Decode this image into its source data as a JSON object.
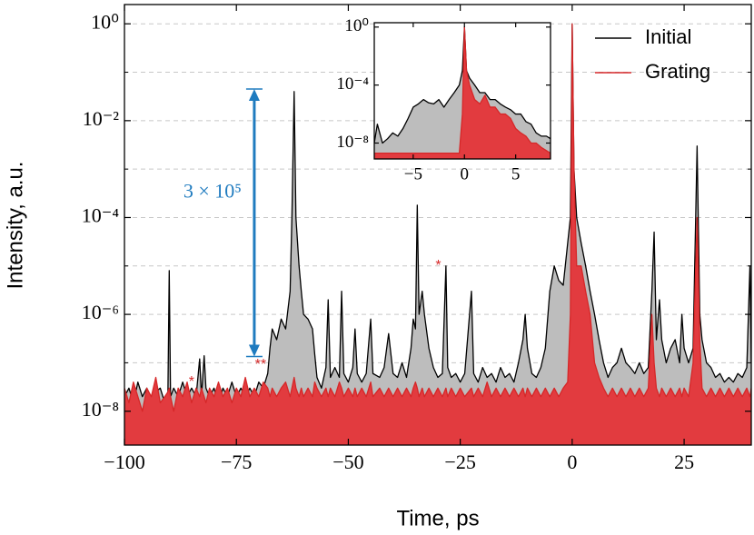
{
  "chart_data": [
    {
      "type": "area",
      "xlabel": "Time, ps",
      "ylabel": "Intensity, a.u.",
      "log_y": true,
      "grid": true,
      "legend": "upper right",
      "xlim": [
        -100,
        40
      ],
      "ylim": [
        2e-09,
        2.5
      ],
      "xticks": [
        {
          "value": -100,
          "label": "−100"
        },
        {
          "value": -75,
          "label": "−75"
        },
        {
          "value": -50,
          "label": "−50"
        },
        {
          "value": -25,
          "label": "−25"
        },
        0,
        25
      ],
      "yticks": [
        {
          "value": 1,
          "label": "10⁰"
        },
        {
          "value": 0.01,
          "label": "10⁻²"
        },
        {
          "value": 0.0001,
          "label": "10⁻⁴"
        },
        {
          "value": 1e-06,
          "label": "10⁻⁶"
        },
        {
          "value": 1e-08,
          "label": "10⁻⁸"
        }
      ],
      "minor_yticks": [
        0.1,
        0.001,
        1e-05,
        1e-07
      ],
      "x": [
        -100,
        -99,
        -98,
        -97,
        -96,
        -95,
        -94,
        -93,
        -92,
        -91,
        -90.3,
        -90,
        -89.7,
        -89,
        -88,
        -87,
        -86,
        -85,
        -84,
        -83.2,
        -82.8,
        -82.2,
        -81.8,
        -81,
        -80,
        -79,
        -78,
        -77,
        -76,
        -75,
        -74,
        -73,
        -72,
        -71,
        -70,
        -69,
        -68,
        -67.5,
        -67,
        -66,
        -65,
        -64,
        -63,
        -62.6,
        -62.1,
        -61.7,
        -61,
        -60.5,
        -60,
        -59,
        -58,
        -57.5,
        -57,
        -56,
        -55,
        -54.5,
        -54,
        -53,
        -52,
        -51.5,
        -51,
        -50,
        -49,
        -48.5,
        -48,
        -47,
        -46,
        -45,
        -44.5,
        -43,
        -42,
        -41,
        -40,
        -39,
        -38,
        -37,
        -36,
        -35.5,
        -35,
        -34.6,
        -34.2,
        -33.5,
        -33,
        -32,
        -31,
        -30,
        -29,
        -28.2,
        -27.8,
        -27,
        -26,
        -25,
        -24,
        -22.5,
        -22,
        -21,
        -20,
        -19,
        -18,
        -17,
        -16,
        -15,
        -14,
        -13,
        -12,
        -11,
        -10.5,
        -10,
        -9,
        -8,
        -7,
        -6,
        -5,
        -4,
        -3,
        -2,
        -1,
        -0.4,
        0,
        0.4,
        1,
        2,
        3,
        4,
        5,
        6,
        7,
        8,
        9,
        10,
        11,
        12,
        13,
        14,
        15,
        16,
        17,
        17.8,
        18.3,
        18.8,
        19.5,
        20,
        21,
        22,
        23,
        24,
        24.5,
        25,
        26,
        27,
        27.9,
        28.5,
        29,
        30,
        31,
        32,
        33,
        34,
        35,
        36,
        37,
        38,
        39,
        39.7,
        40
      ],
      "series": [
        {
          "name": "Initial",
          "color": "#000000",
          "fill": "#bdbdbd",
          "values": [
            2e-08,
            3e-08,
            1.5e-08,
            4e-08,
            2e-08,
            3e-08,
            1.2e-08,
            2.5e-08,
            3e-08,
            1.5e-08,
            2e-08,
            8e-06,
            2e-08,
            3e-08,
            2e-08,
            4e-08,
            2e-08,
            3e-08,
            2e-08,
            1.2e-07,
            2e-08,
            1.4e-07,
            3e-08,
            2e-08,
            3e-08,
            1.5e-08,
            3e-08,
            2e-08,
            4e-08,
            2e-08,
            3e-08,
            2e-08,
            3e-08,
            2e-08,
            4e-08,
            3e-08,
            6e-08,
            2e-07,
            5e-07,
            3e-07,
            8e-07,
            5e-07,
            3e-06,
            0.0001,
            0.04,
            0.0001,
            1e-05,
            3e-06,
            1e-06,
            8e-07,
            5e-07,
            1.5e-07,
            5e-08,
            3e-08,
            8e-08,
            2e-06,
            5e-08,
            8e-08,
            5e-08,
            3e-06,
            6e-08,
            4e-08,
            8e-08,
            5e-07,
            6e-08,
            4e-08,
            6e-08,
            8e-07,
            6e-08,
            5e-08,
            8e-08,
            4e-07,
            6e-08,
            5e-08,
            1e-07,
            5e-08,
            2e-07,
            8e-07,
            5e-07,
            0.00018,
            1e-06,
            3e-06,
            1e-06,
            2e-07,
            8e-08,
            5e-08,
            6e-08,
            1e-05,
            8e-08,
            5e-08,
            6e-08,
            4e-08,
            6e-08,
            3e-06,
            6e-08,
            4e-08,
            8e-08,
            5e-08,
            6e-08,
            4e-08,
            8e-08,
            5e-08,
            6e-08,
            4e-08,
            1e-07,
            3e-07,
            1e-06,
            2e-07,
            6e-08,
            5e-08,
            8e-08,
            2e-07,
            3e-06,
            1e-05,
            5e-06,
            4e-06,
            3e-05,
            0.0001,
            1,
            0.001,
            0.0001,
            3e-05,
            1e-05,
            3e-06,
            1e-06,
            3e-07,
            1e-07,
            5e-08,
            8e-08,
            1e-07,
            2e-07,
            1e-07,
            8e-08,
            6e-08,
            1e-07,
            6e-08,
            8e-08,
            3e-06,
            5e-05,
            3e-07,
            2e-06,
            3e-07,
            1e-07,
            2e-07,
            3e-07,
            1e-07,
            1e-06,
            2e-07,
            1e-07,
            2e-07,
            0.003,
            1e-06,
            3e-07,
            1e-07,
            8e-08,
            5e-08,
            6e-08,
            4e-08,
            5e-08,
            4e-08,
            6e-08,
            5e-08,
            8e-08,
            1e-05,
            1e-07
          ]
        },
        {
          "name": "Grating",
          "color": "#d62728",
          "fill": "#e23b3f",
          "values": [
            3e-08,
            1.5e-08,
            4e-08,
            2e-08,
            1e-08,
            3e-08,
            2e-08,
            5e-08,
            1.5e-08,
            2e-08,
            2.5e-08,
            3e-08,
            2e-08,
            1e-08,
            3e-08,
            2e-08,
            4e-08,
            1.5e-08,
            3e-08,
            2e-08,
            3e-08,
            2e-08,
            1.5e-08,
            3e-08,
            2e-08,
            4e-08,
            2e-08,
            3e-08,
            1.5e-08,
            3e-08,
            2e-08,
            5e-08,
            2e-08,
            3e-08,
            2e-08,
            4e-08,
            3e-08,
            2e-08,
            3e-08,
            2e-08,
            3e-08,
            4e-08,
            2e-08,
            3e-08,
            5e-08,
            3e-08,
            2e-08,
            3e-08,
            2e-08,
            3e-08,
            2e-08,
            4e-08,
            3e-08,
            2e-08,
            3e-08,
            2e-08,
            3e-08,
            2e-08,
            4e-08,
            3e-08,
            2e-08,
            3e-08,
            2e-08,
            3e-08,
            2e-08,
            3e-08,
            2e-08,
            4e-08,
            2e-08,
            3e-08,
            2e-08,
            3e-08,
            2e-08,
            3e-08,
            2e-08,
            3e-08,
            2e-08,
            3e-08,
            4e-08,
            3e-08,
            2e-08,
            3e-08,
            2e-08,
            3e-08,
            2e-08,
            3e-08,
            2e-08,
            3e-08,
            2e-08,
            3e-08,
            2e-08,
            3e-08,
            2e-08,
            3e-08,
            2e-08,
            3e-08,
            2e-08,
            4e-08,
            2e-08,
            3e-08,
            2e-08,
            3e-08,
            2e-08,
            3e-08,
            2e-08,
            3e-08,
            2e-08,
            3e-08,
            2e-08,
            3e-08,
            2e-08,
            3e-08,
            2e-08,
            3e-08,
            2e-08,
            3e-08,
            4e-08,
            1e-06,
            1,
            0.001,
            1e-05,
            1e-05,
            3e-06,
            1e-06,
            1e-07,
            5e-08,
            3e-08,
            2e-08,
            3e-08,
            2e-08,
            3e-08,
            2e-08,
            3e-08,
            2e-08,
            3e-08,
            2e-08,
            3e-08,
            1e-06,
            1e-07,
            3e-08,
            2e-08,
            3e-08,
            2e-08,
            3e-08,
            2e-08,
            3e-08,
            2e-08,
            3e-08,
            2e-08,
            1e-07,
            0.0001,
            3e-07,
            3e-08,
            2e-08,
            3e-08,
            2e-08,
            3e-08,
            2e-08,
            3e-08,
            2e-08,
            3e-08,
            2e-08,
            3e-08,
            2e-08,
            3e-08
          ]
        }
      ],
      "arrow": {
        "text": "3 × 10⁵",
        "x": -71,
        "y_top": 0.045,
        "y_bottom": 1.35e-07,
        "color": "#1f7bbf"
      },
      "annotations": [
        {
          "text": "*",
          "x": -85,
          "y": 4e-08,
          "color": "#d62728"
        },
        {
          "text": "**",
          "x": -69.6,
          "y": 9e-08,
          "color": "#d62728"
        },
        {
          "text": "*",
          "x": -29.9,
          "y": 1e-05,
          "color": "#d62728"
        }
      ]
    },
    {
      "type": "area",
      "log_y": true,
      "xlim": [
        -8.8,
        8.4
      ],
      "ylim": [
        8e-10,
        2
      ],
      "xticks": [
        {
          "value": -5,
          "label": "−5"
        },
        0,
        5
      ],
      "yticks": [
        {
          "value": 1,
          "label": "10⁰"
        },
        {
          "value": 0.0001,
          "label": "10⁻⁴"
        },
        {
          "value": 1e-08,
          "label": "10⁻⁸"
        }
      ],
      "x": [
        -8.8,
        -8.5,
        -8,
        -7.5,
        -7,
        -6.5,
        -6,
        -5.5,
        -5,
        -4.5,
        -4,
        -3.5,
        -3,
        -2.5,
        -2,
        -1.5,
        -1,
        -0.5,
        -0.2,
        0,
        0.2,
        0.5,
        1,
        1.5,
        2,
        2.5,
        3,
        3.5,
        4,
        4.5,
        5,
        5.5,
        6,
        6.5,
        7,
        7.5,
        8,
        8.4
      ],
      "series": [
        {
          "name": "Initial",
          "color": "#000000",
          "fill": "#bdbdbd",
          "values": [
            1e-08,
            2e-07,
            1e-08,
            2e-08,
            5e-08,
            3e-08,
            1e-07,
            5e-07,
            3e-06,
            5e-06,
            1e-05,
            6e-06,
            5e-06,
            1e-05,
            3e-06,
            1e-05,
            3e-05,
            0.0001,
            0.001,
            1,
            0.001,
            0.0003,
            0.0001,
            3e-05,
            3e-05,
            1e-05,
            1e-05,
            5e-06,
            3e-06,
            2e-06,
            1e-06,
            1e-06,
            3e-07,
            2e-07,
            5e-08,
            3e-08,
            3e-08,
            2e-08
          ]
        },
        {
          "name": "Grating",
          "color": "#d62728",
          "fill": "#e23b3f",
          "values": [
            2e-09,
            2e-09,
            2e-09,
            2e-09,
            2e-09,
            2e-09,
            2e-09,
            2e-09,
            2e-09,
            2e-09,
            2e-09,
            2e-09,
            2e-09,
            2e-09,
            2e-09,
            2e-09,
            2e-09,
            2e-09,
            1e-06,
            1,
            0.001,
            0.0001,
            1e-05,
            5e-06,
            2e-05,
            3e-06,
            3e-06,
            1e-06,
            1e-06,
            5e-07,
            1e-07,
            5e-08,
            3e-08,
            1e-08,
            1e-08,
            5e-09,
            3e-09,
            2e-09
          ]
        }
      ]
    }
  ]
}
